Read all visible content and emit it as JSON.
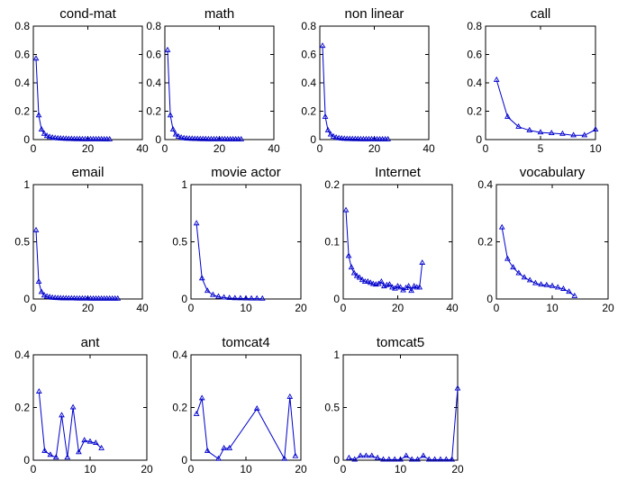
{
  "chart_data": [
    {
      "type": "line",
      "title": "cond-mat",
      "xlim": [
        0,
        40
      ],
      "ylim": [
        0,
        0.8
      ],
      "xticks": [
        0,
        20,
        40
      ],
      "yticks": [
        0,
        0.2,
        0.4,
        0.6,
        0.8
      ],
      "tick_labels_x": [
        "0",
        "20",
        "40"
      ],
      "tick_labels_y": [
        "0",
        "0.2",
        "0.4",
        "0.6",
        "0.8"
      ],
      "color": "#0000cc",
      "marker": "triangle",
      "x": [
        1,
        2,
        3,
        4,
        5,
        6,
        7,
        8,
        9,
        10,
        11,
        12,
        13,
        14,
        15,
        16,
        17,
        18,
        19,
        20,
        21,
        22,
        23,
        24,
        25,
        26,
        27,
        28
      ],
      "y": [
        0.57,
        0.17,
        0.07,
        0.04,
        0.025,
        0.018,
        0.013,
        0.01,
        0.008,
        0.007,
        0.006,
        0.005,
        0.004,
        0.004,
        0.003,
        0.003,
        0.003,
        0.002,
        0.002,
        0.002,
        0.002,
        0.002,
        0.002,
        0.002,
        0.002,
        0.001,
        0.001,
        0.001
      ]
    },
    {
      "type": "line",
      "title": "math",
      "xlim": [
        0,
        40
      ],
      "ylim": [
        0,
        0.8
      ],
      "xticks": [
        0,
        20,
        40
      ],
      "yticks": [
        0,
        0.2,
        0.4,
        0.6,
        0.8
      ],
      "tick_labels_x": [
        "0",
        "20",
        "40"
      ],
      "tick_labels_y": [
        "0",
        "0.2",
        "0.4",
        "0.6",
        "0.8"
      ],
      "color": "#0000cc",
      "marker": "triangle",
      "x": [
        1,
        2,
        3,
        4,
        5,
        6,
        7,
        8,
        9,
        10,
        11,
        12,
        13,
        14,
        15,
        16,
        17,
        18,
        19,
        20,
        21,
        22,
        23,
        24,
        25,
        26,
        27,
        28
      ],
      "y": [
        0.63,
        0.17,
        0.07,
        0.035,
        0.02,
        0.013,
        0.009,
        0.007,
        0.006,
        0.005,
        0.004,
        0.004,
        0.003,
        0.003,
        0.003,
        0.002,
        0.002,
        0.002,
        0.002,
        0.002,
        0.002,
        0.002,
        0.001,
        0.001,
        0.001,
        0.001,
        0.001,
        0.001
      ]
    },
    {
      "type": "line",
      "title": "non linear",
      "xlim": [
        0,
        40
      ],
      "ylim": [
        0,
        0.8
      ],
      "xticks": [
        0,
        20,
        40
      ],
      "yticks": [
        0,
        0.2,
        0.4,
        0.6,
        0.8
      ],
      "tick_labels_x": [
        "0",
        "20",
        "40"
      ],
      "tick_labels_y": [
        "0",
        "0.2",
        "0.4",
        "0.6",
        "0.8"
      ],
      "color": "#0000cc",
      "marker": "triangle",
      "x": [
        1,
        2,
        3,
        4,
        5,
        6,
        7,
        8,
        9,
        10,
        11,
        12,
        13,
        14,
        15,
        16,
        17,
        18,
        19,
        20,
        21,
        22,
        23,
        24,
        25
      ],
      "y": [
        0.66,
        0.16,
        0.065,
        0.035,
        0.02,
        0.013,
        0.009,
        0.007,
        0.005,
        0.004,
        0.004,
        0.003,
        0.003,
        0.003,
        0.002,
        0.002,
        0.002,
        0.002,
        0.002,
        0.002,
        0.001,
        0.001,
        0.001,
        0.001,
        0.001
      ]
    },
    {
      "type": "line",
      "title": "call",
      "xlim": [
        0,
        10
      ],
      "ylim": [
        0,
        0.8
      ],
      "xticks": [
        0,
        5,
        10
      ],
      "yticks": [
        0,
        0.2,
        0.4,
        0.6,
        0.8
      ],
      "tick_labels_x": [
        "0",
        "5",
        "10"
      ],
      "tick_labels_y": [
        "0",
        "0.2",
        "0.4",
        "0.6",
        "0.8"
      ],
      "color": "#0000cc",
      "marker": "triangle",
      "x": [
        1,
        2,
        3,
        4,
        5,
        6,
        7,
        8,
        9,
        10
      ],
      "y": [
        0.42,
        0.16,
        0.09,
        0.065,
        0.05,
        0.045,
        0.04,
        0.03,
        0.03,
        0.07
      ]
    },
    {
      "type": "line",
      "title": "email",
      "xlim": [
        0,
        40
      ],
      "ylim": [
        0,
        1
      ],
      "xticks": [
        0,
        20,
        40
      ],
      "yticks": [
        0,
        0.5,
        1
      ],
      "tick_labels_x": [
        "0",
        "20",
        "40"
      ],
      "tick_labels_y": [
        "0",
        "0.5",
        "1"
      ],
      "color": "#0000cc",
      "marker": "triangle",
      "x": [
        1,
        2,
        3,
        4,
        5,
        6,
        7,
        8,
        9,
        10,
        11,
        12,
        13,
        14,
        15,
        16,
        17,
        18,
        19,
        20,
        21,
        22,
        23,
        24,
        25,
        26,
        27,
        28,
        29,
        30,
        31
      ],
      "y": [
        0.6,
        0.15,
        0.06,
        0.03,
        0.02,
        0.015,
        0.01,
        0.008,
        0.007,
        0.006,
        0.005,
        0.005,
        0.004,
        0.004,
        0.004,
        0.003,
        0.003,
        0.003,
        0.003,
        0.003,
        0.002,
        0.002,
        0.002,
        0.002,
        0.002,
        0.002,
        0.002,
        0.002,
        0.002,
        0.002,
        0.002
      ]
    },
    {
      "type": "line",
      "title": "movie actor",
      "xlim": [
        0,
        20
      ],
      "ylim": [
        0,
        1
      ],
      "xticks": [
        0,
        10,
        20
      ],
      "yticks": [
        0,
        0.5,
        1
      ],
      "tick_labels_x": [
        "0",
        "10",
        "20"
      ],
      "tick_labels_y": [
        "0",
        "0.5",
        "1"
      ],
      "color": "#0000cc",
      "marker": "triangle",
      "x": [
        1,
        2,
        3,
        4,
        5,
        6,
        7,
        8,
        9,
        10,
        11,
        12,
        13
      ],
      "y": [
        0.66,
        0.18,
        0.07,
        0.035,
        0.02,
        0.012,
        0.008,
        0.006,
        0.005,
        0.004,
        0.003,
        0.003,
        0.002
      ]
    },
    {
      "type": "line",
      "title": "Internet",
      "xlim": [
        0,
        40
      ],
      "ylim": [
        0,
        0.2
      ],
      "xticks": [
        0,
        20,
        40
      ],
      "yticks": [
        0,
        0.1,
        0.2
      ],
      "tick_labels_x": [
        "0",
        "20",
        "40"
      ],
      "tick_labels_y": [
        "0",
        "0.1",
        "0.2"
      ],
      "color": "#0000cc",
      "marker": "triangle",
      "x": [
        1,
        2,
        3,
        4,
        5,
        6,
        7,
        8,
        9,
        10,
        11,
        12,
        13,
        14,
        15,
        16,
        17,
        18,
        19,
        20,
        21,
        22,
        23,
        24,
        25,
        26,
        27,
        28,
        29
      ],
      "y": [
        0.155,
        0.075,
        0.055,
        0.045,
        0.04,
        0.037,
        0.033,
        0.03,
        0.03,
        0.028,
        0.026,
        0.025,
        0.026,
        0.03,
        0.022,
        0.024,
        0.025,
        0.02,
        0.018,
        0.022,
        0.02,
        0.015,
        0.019,
        0.022,
        0.014,
        0.022,
        0.02,
        0.02,
        0.063
      ]
    },
    {
      "type": "line",
      "title": "vocabulary",
      "xlim": [
        0,
        20
      ],
      "ylim": [
        0,
        0.4
      ],
      "xticks": [
        0,
        10,
        20
      ],
      "yticks": [
        0,
        0.2,
        0.4
      ],
      "tick_labels_x": [
        "0",
        "10",
        "20"
      ],
      "tick_labels_y": [
        "0",
        "0.2",
        "0.4"
      ],
      "color": "#0000cc",
      "marker": "triangle",
      "x": [
        1,
        2,
        3,
        4,
        5,
        6,
        7,
        8,
        9,
        10,
        11,
        12,
        13,
        14
      ],
      "y": [
        0.25,
        0.14,
        0.11,
        0.09,
        0.075,
        0.065,
        0.055,
        0.05,
        0.048,
        0.045,
        0.04,
        0.035,
        0.025,
        0.01
      ]
    },
    {
      "type": "line",
      "title": "ant",
      "xlim": [
        0,
        20
      ],
      "ylim": [
        0,
        0.4
      ],
      "xticks": [
        0,
        10,
        20
      ],
      "yticks": [
        0,
        0.2,
        0.4
      ],
      "tick_labels_x": [
        "0",
        "10",
        "20"
      ],
      "tick_labels_y": [
        "0",
        "0.2",
        "0.4"
      ],
      "color": "#0000cc",
      "marker": "triangle",
      "x": [
        1,
        2,
        3,
        4,
        5,
        6,
        7,
        8,
        9,
        10,
        11,
        12
      ],
      "y": [
        0.26,
        0.035,
        0.02,
        0.01,
        0.17,
        0.01,
        0.2,
        0.03,
        0.075,
        0.07,
        0.065,
        0.045
      ]
    },
    {
      "type": "line",
      "title": "tomcat4",
      "xlim": [
        0,
        20
      ],
      "ylim": [
        0,
        0.4
      ],
      "xticks": [
        0,
        10,
        20
      ],
      "yticks": [
        0,
        0.2,
        0.4
      ],
      "tick_labels_x": [
        "0",
        "10",
        "20"
      ],
      "tick_labels_y": [
        "0",
        "0.2",
        "0.4"
      ],
      "color": "#0000cc",
      "marker": "triangle",
      "x": [
        1,
        2,
        3,
        5,
        6,
        7,
        12,
        17,
        18,
        19
      ],
      "y": [
        0.175,
        0.235,
        0.035,
        0.005,
        0.045,
        0.045,
        0.195,
        0.005,
        0.24,
        0.015
      ]
    },
    {
      "type": "line",
      "title": "tomcat5",
      "xlim": [
        0,
        20
      ],
      "ylim": [
        0,
        1
      ],
      "xticks": [
        0,
        10,
        20
      ],
      "yticks": [
        0,
        0.5,
        1
      ],
      "tick_labels_x": [
        "0",
        "10",
        "20"
      ],
      "tick_labels_y": [
        "0",
        "0.5",
        "1"
      ],
      "color": "#0000cc",
      "marker": "triangle",
      "x": [
        1,
        2,
        3,
        4,
        5,
        6,
        7,
        8,
        9,
        10,
        11,
        12,
        13,
        14,
        15,
        16,
        17,
        18,
        19,
        20
      ],
      "y": [
        0.02,
        0.005,
        0.04,
        0.04,
        0.04,
        0.02,
        0.005,
        0.005,
        0.005,
        0.005,
        0.04,
        0.005,
        0.005,
        0.04,
        0.005,
        0.005,
        0.005,
        0.005,
        0.005,
        0.68
      ]
    }
  ]
}
